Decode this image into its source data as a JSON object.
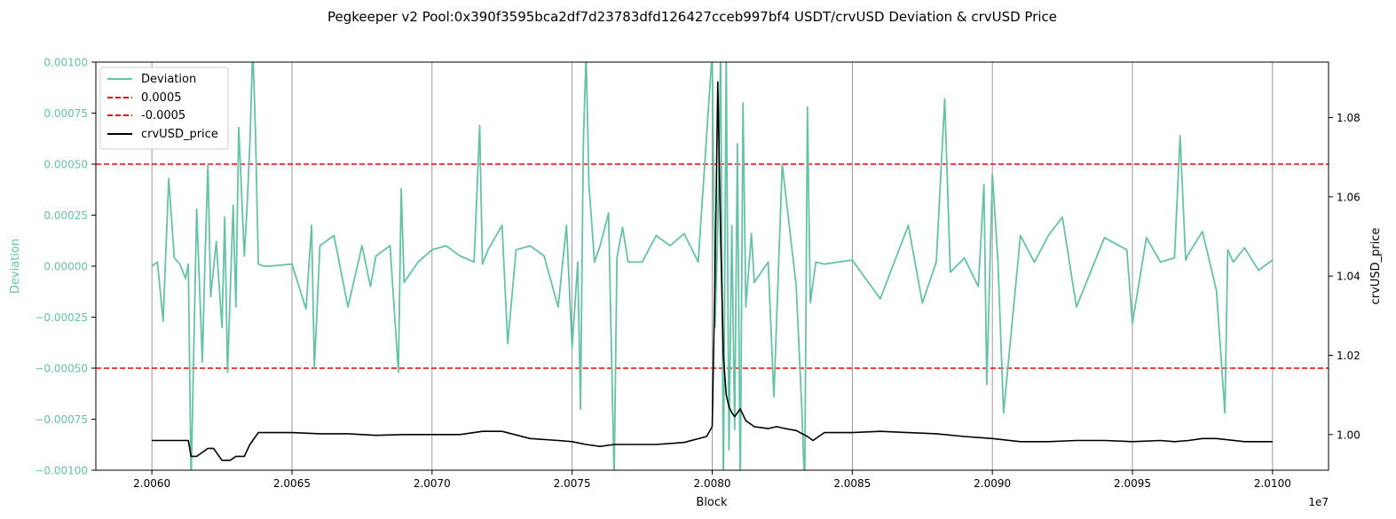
{
  "chart_data": {
    "type": "line",
    "title": "Pegkeeper v2 Pool:0x390f3595bca2df7d23783dfd126427cceb997bf4 USDT/crvUSD Deviation & crvUSD Price",
    "xlabel": "Block",
    "x_offset_label": "1e7",
    "ylabel_left": "Deviation",
    "ylabel_right": "crvUSD_price",
    "xlim": [
      20058000,
      20102000
    ],
    "ylim_left": [
      -0.001,
      0.001
    ],
    "ylim_right": [
      0.991,
      1.094
    ],
    "x_ticks": [
      20060000,
      20065000,
      20070000,
      20075000,
      20080000,
      20085000,
      20090000,
      20095000,
      20100000
    ],
    "x_tick_labels": [
      "2.0060",
      "2.0065",
      "2.0070",
      "2.0075",
      "2.0080",
      "2.0085",
      "2.0090",
      "2.0095",
      "2.0100"
    ],
    "y_left_ticks": [
      -0.001,
      -0.00075,
      -0.0005,
      -0.00025,
      0,
      0.00025,
      0.0005,
      0.00075,
      0.001
    ],
    "y_left_tick_labels": [
      "−0.00100",
      "−0.00075",
      "−0.00050",
      "−0.00025",
      "0.00000",
      "0.00025",
      "0.00050",
      "0.00075",
      "0.00100"
    ],
    "y_right_ticks": [
      1.0,
      1.02,
      1.04,
      1.06,
      1.08
    ],
    "y_right_tick_labels": [
      "1.00",
      "1.02",
      "1.04",
      "1.06",
      "1.08"
    ],
    "grid": "vertical lines at x ticks",
    "legend_position": "top-left",
    "colors": {
      "deviation": "#66c2a5",
      "threshold": "#ff0000",
      "price": "#000000",
      "grid": "#808080"
    },
    "legend": [
      {
        "label": "Deviation",
        "style": "solid",
        "color": "#66c2a5"
      },
      {
        "label": "0.0005",
        "style": "dashed",
        "color": "#ff0000"
      },
      {
        "label": "-0.0005",
        "style": "dashed",
        "color": "#ff0000"
      },
      {
        "label": "crvUSD_price",
        "style": "solid",
        "color": "#000000"
      }
    ],
    "thresholds": [
      0.0005,
      -0.0005
    ],
    "series": [
      {
        "name": "Deviation",
        "axis": "left",
        "x": [
          20060000,
          20060200,
          20060400,
          20060600,
          20060800,
          20061000,
          20061200,
          20061300,
          20061400,
          20061600,
          20061800,
          20061900,
          20062000,
          20062100,
          20062300,
          20062500,
          20062600,
          20062700,
          20062900,
          20063000,
          20063100,
          20063300,
          20063400,
          20063500,
          20063600,
          20063700,
          20063800,
          20064000,
          20064200,
          20065000,
          20065500,
          20065700,
          20065800,
          20066000,
          20066500,
          20067000,
          20067500,
          20067800,
          20068000,
          20068500,
          20068800,
          20068900,
          20069000,
          20069500,
          20070000,
          20070500,
          20071000,
          20071500,
          20071700,
          20071800,
          20072000,
          20072500,
          20072700,
          20073000,
          20073500,
          20074000,
          20074500,
          20074800,
          20075000,
          20075200,
          20075300,
          20075400,
          20075500,
          20075600,
          20075800,
          20076000,
          20076300,
          20076500,
          20076600,
          20076800,
          20077000,
          20077500,
          20078000,
          20078500,
          20079000,
          20079500,
          20080000,
          20080100,
          20080200,
          20080300,
          20080400,
          20080500,
          20080600,
          20080700,
          20080800,
          20080900,
          20081000,
          20081100,
          20081200,
          20081400,
          20081500,
          20082000,
          20082200,
          20082500,
          20083000,
          20083200,
          20083300,
          20083400,
          20083500,
          20083700,
          20084000,
          20085000,
          20086000,
          20087000,
          20087500,
          20088000,
          20088300,
          20088500,
          20089000,
          20089500,
          20089700,
          20089800,
          20090000,
          20090200,
          20090400,
          20091000,
          20091500,
          20092000,
          20092500,
          20093000,
          20094000,
          20094800,
          20095000,
          20095500,
          20096000,
          20096500,
          20096700,
          20096900,
          20097000,
          20097500,
          20098000,
          20098300,
          20098400,
          20098600,
          20099000,
          20099500,
          20100000
        ],
        "values": [
          0,
          2e-05,
          -0.00027,
          0.00043,
          4e-05,
          1e-05,
          -6e-05,
          1e-05,
          -0.00106,
          0.00028,
          -0.00047,
          5e-05,
          0.0005,
          -0.00015,
          0.00012,
          -0.0003,
          0.00024,
          -0.00052,
          0.0003,
          -0.0002,
          0.00068,
          5e-05,
          0.0003,
          0.0006,
          0.00108,
          0.00065,
          1e-05,
          0,
          0,
          1e-05,
          -0.00021,
          0.0002,
          -0.0005,
          0.0001,
          0.00015,
          -0.0002,
          0.0001,
          -0.0001,
          5e-05,
          0.0001,
          -0.00052,
          0.00038,
          -8e-05,
          2e-05,
          8e-05,
          0.0001,
          5e-05,
          2e-05,
          0.00069,
          1e-05,
          8e-05,
          0.0002,
          -0.00038,
          8e-05,
          0.0001,
          5e-05,
          -0.0002,
          0.0002,
          -0.0004,
          2e-05,
          -0.0007,
          0.0006,
          0.00104,
          0.0004,
          2e-05,
          0.0001,
          0.00026,
          -0.00104,
          4e-05,
          0.00019,
          2e-05,
          2e-05,
          0.00015,
          0.0001,
          0.00016,
          2e-05,
          0.00105,
          -0.0003,
          0.00018,
          0.00105,
          -0.0011,
          0.00104,
          -0.0009,
          0.0002,
          -0.0008,
          0.0006,
          -0.0011,
          0.0008,
          -0.0002,
          0.00016,
          -8e-05,
          2e-05,
          -0.00064,
          0.0005,
          -0.0001,
          -0.0007,
          -0.0011,
          0.00078,
          -0.00018,
          2e-05,
          1e-05,
          3e-05,
          -0.00016,
          0.0002,
          -0.00018,
          2e-05,
          0.00082,
          -3e-05,
          4e-05,
          -0.0001,
          0.0004,
          -0.00058,
          0.00045,
          2e-05,
          -0.00072,
          0.00015,
          2e-05,
          0.00015,
          0.00024,
          -0.0002,
          0.00014,
          8e-05,
          -0.00028,
          0.00014,
          2e-05,
          4e-05,
          0.00064,
          3e-05,
          6e-05,
          0.00017,
          -0.00012,
          -0.00072,
          8e-05,
          2e-05,
          9e-05,
          -2e-05,
          3e-05
        ]
      },
      {
        "name": "crvUSD_price",
        "axis": "right",
        "x": [
          20060000,
          20060900,
          20061300,
          20061400,
          20061600,
          20061800,
          20062000,
          20062200,
          20062500,
          20062800,
          20063000,
          20063300,
          20063500,
          20063800,
          20064000,
          20065000,
          20066000,
          20067000,
          20068000,
          20069000,
          20070000,
          20071000,
          20071800,
          20072500,
          20073500,
          20074500,
          20075000,
          20075500,
          20076000,
          20076500,
          20077000,
          20078000,
          20079000,
          20079800,
          20080000,
          20080100,
          20080200,
          20080300,
          20080400,
          20080500,
          20080600,
          20080700,
          20080800,
          20081000,
          20081200,
          20081500,
          20082000,
          20082300,
          20082600,
          20083000,
          20083400,
          20083600,
          20084000,
          20085000,
          20086000,
          20087000,
          20088000,
          20089000,
          20090000,
          20091000,
          20092000,
          20093000,
          20094000,
          20095000,
          20096000,
          20096500,
          20097000,
          20097500,
          20098000,
          20099000,
          20100000
        ],
        "values": [
          0.9985,
          0.9985,
          0.9985,
          0.9945,
          0.9945,
          0.9955,
          0.9965,
          0.9965,
          0.9935,
          0.9935,
          0.9945,
          0.9945,
          0.9975,
          1.0005,
          1.0005,
          1.0005,
          1.0002,
          1.0002,
          0.9998,
          1,
          1,
          1,
          1.0008,
          1.0008,
          0.999,
          0.9985,
          0.9982,
          0.9975,
          0.997,
          0.9975,
          0.9975,
          0.9975,
          0.998,
          0.9995,
          1.002,
          1.04,
          1.089,
          1.05,
          1.02,
          1.01,
          1.007,
          1.0055,
          1.0045,
          1.0065,
          1.0035,
          1.002,
          1.0015,
          1.002,
          1.0015,
          1.001,
          0.9995,
          0.9985,
          1.0005,
          1.0005,
          1.0008,
          1.0005,
          1.0002,
          0.9995,
          0.999,
          0.9982,
          0.9982,
          0.9985,
          0.9985,
          0.9982,
          0.9985,
          0.9982,
          0.9985,
          0.999,
          0.999,
          0.9982,
          0.9982
        ]
      }
    ]
  }
}
